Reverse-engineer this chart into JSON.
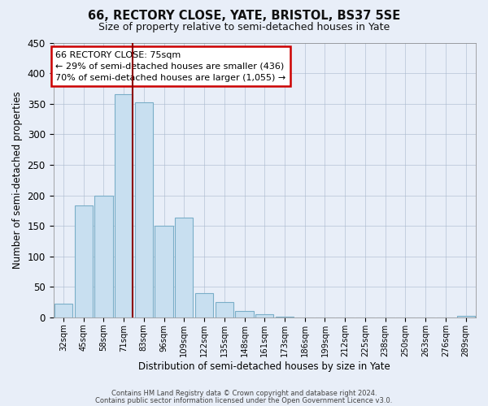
{
  "title": "66, RECTORY CLOSE, YATE, BRISTOL, BS37 5SE",
  "subtitle": "Size of property relative to semi-detached houses in Yate",
  "xlabel": "Distribution of semi-detached houses by size in Yate",
  "ylabel": "Number of semi-detached properties",
  "footer_line1": "Contains HM Land Registry data © Crown copyright and database right 2024.",
  "footer_line2": "Contains public sector information licensed under the Open Government Licence v3.0.",
  "bar_labels": [
    "32sqm",
    "45sqm",
    "58sqm",
    "71sqm",
    "83sqm",
    "96sqm",
    "109sqm",
    "122sqm",
    "135sqm",
    "148sqm",
    "161sqm",
    "173sqm",
    "186sqm",
    "199sqm",
    "212sqm",
    "225sqm",
    "238sqm",
    "250sqm",
    "263sqm",
    "276sqm",
    "289sqm"
  ],
  "bar_values": [
    22,
    183,
    200,
    365,
    352,
    150,
    164,
    40,
    25,
    10,
    5,
    1,
    0,
    0,
    0,
    0,
    0,
    0,
    0,
    0,
    2
  ],
  "bar_color": "#c8dff0",
  "bar_edge_color": "#7aaec8",
  "highlight_bar_index": 3,
  "highlight_line_color": "#8b0000",
  "annotation_title": "66 RECTORY CLOSE: 75sqm",
  "annotation_line1": "← 29% of semi-detached houses are smaller (436)",
  "annotation_line2": "70% of semi-detached houses are larger (1,055) →",
  "annotation_box_facecolor": "#ffffff",
  "annotation_box_edgecolor": "#cc0000",
  "ylim": [
    0,
    450
  ],
  "yticks": [
    0,
    50,
    100,
    150,
    200,
    250,
    300,
    350,
    400,
    450
  ],
  "background_color": "#e8eef8"
}
